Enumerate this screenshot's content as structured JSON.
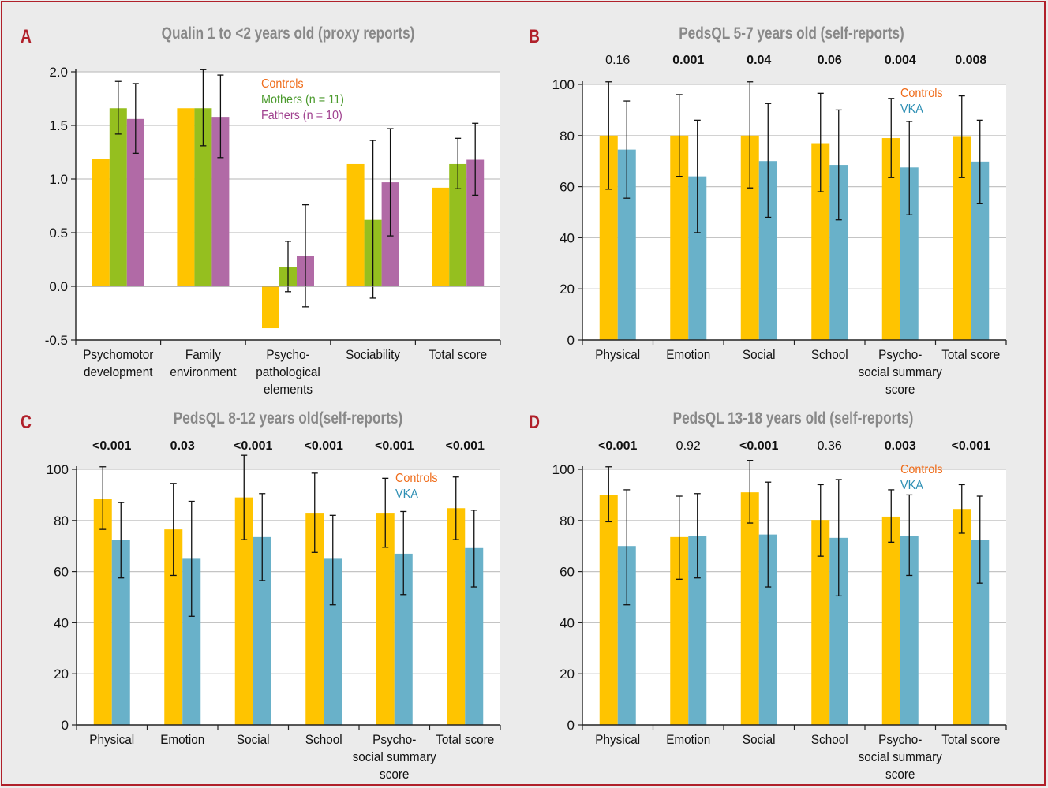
{
  "colors": {
    "controls": "#ffc400",
    "mothers": "#95bf1f",
    "fathers": "#b16aa6",
    "vka": "#69b1c9",
    "panel_letter": "#b0202a",
    "title": "#888888",
    "legend_controls": "#ef6c1a",
    "legend_mothers": "#4b9a2d",
    "legend_fathers": "#a0418f",
    "legend_vka": "#2e8fb4"
  },
  "chart_data": [
    {
      "panel": "A",
      "type": "bar",
      "title": "Qualin 1 to <2 years old (proxy reports)",
      "categories": [
        [
          "Psychomotor",
          "development"
        ],
        [
          "Family",
          "environment"
        ],
        [
          "Psycho-",
          "pathological",
          "elements"
        ],
        [
          "Sociability"
        ],
        [
          "Total score"
        ]
      ],
      "ylim": [
        -0.5,
        2.0
      ],
      "yticks": [
        -0.5,
        0.0,
        0.5,
        1.0,
        1.5,
        2.0
      ],
      "ytick_labels": [
        "-0.5",
        "0.0",
        "0.5",
        "1.0",
        "1.5",
        "2.0"
      ],
      "series": [
        {
          "name": "Controls",
          "color": "controls",
          "values": [
            1.19,
            1.66,
            -0.39,
            1.14,
            0.92
          ],
          "err_low": [
            null,
            null,
            null,
            null,
            null
          ],
          "err_high": [
            null,
            null,
            null,
            null,
            null
          ]
        },
        {
          "name": "Mothers (n = 11)",
          "color": "mothers",
          "values": [
            1.66,
            1.66,
            0.18,
            0.62,
            1.14
          ],
          "err_low": [
            1.42,
            1.31,
            -0.05,
            -0.11,
            0.91
          ],
          "err_high": [
            1.91,
            2.02,
            0.42,
            1.36,
            1.38
          ]
        },
        {
          "name": "Fathers (n = 10)",
          "color": "fathers",
          "values": [
            1.56,
            1.58,
            0.28,
            0.97,
            1.18
          ],
          "err_low": [
            1.24,
            1.2,
            -0.19,
            0.47,
            0.85
          ],
          "err_high": [
            1.89,
            1.97,
            0.76,
            1.47,
            1.52
          ]
        }
      ],
      "legend": [
        {
          "label": "Controls",
          "color": "legend_controls"
        },
        {
          "label": "Mothers (n = 11)",
          "color": "legend_mothers"
        },
        {
          "label": "Fathers (n = 10)",
          "color": "legend_fathers"
        }
      ],
      "legend_position": "top-center",
      "pvalues": [],
      "grid": true
    },
    {
      "panel": "B",
      "type": "bar",
      "title": "PedsQL 5-7 years old (self-reports)",
      "categories": [
        [
          "Physical"
        ],
        [
          "Emotion"
        ],
        [
          "Social"
        ],
        [
          "School"
        ],
        [
          "Psycho-",
          "social summary",
          "score"
        ],
        [
          "Total score"
        ]
      ],
      "ylim": [
        0,
        100
      ],
      "yticks": [
        0,
        20,
        40,
        60,
        80,
        100
      ],
      "ytick_labels": [
        "0",
        "20",
        "40",
        "60",
        "80",
        "100"
      ],
      "series": [
        {
          "name": "Controls",
          "color": "controls",
          "values": [
            80,
            80,
            80,
            77,
            79,
            79.5
          ],
          "err_low": [
            59,
            64,
            59.5,
            58,
            63.5,
            63.5
          ],
          "err_high": [
            101,
            96,
            101,
            96.5,
            94.5,
            95.5
          ]
        },
        {
          "name": "VKA",
          "color": "vka",
          "values": [
            74.5,
            64,
            70,
            68.5,
            67.5,
            69.8
          ],
          "err_low": [
            55.5,
            42,
            48,
            47,
            49,
            53.5
          ],
          "err_high": [
            93.5,
            86,
            92.5,
            90,
            85.5,
            86
          ]
        }
      ],
      "legend": [
        {
          "label": "Controls",
          "color": "legend_controls"
        },
        {
          "label": "VKA",
          "color": "legend_vka"
        }
      ],
      "legend_position": "top-right",
      "pvalues": [
        {
          "text": "0.16",
          "bold": false
        },
        {
          "text": "0.001",
          "bold": true
        },
        {
          "text": "0.04",
          "bold": true
        },
        {
          "text": "0.06",
          "bold": true
        },
        {
          "text": "0.004",
          "bold": true
        },
        {
          "text": "0.008",
          "bold": true
        }
      ],
      "grid": true
    },
    {
      "panel": "C",
      "type": "bar",
      "title": "PedsQL 8-12 years old(self-reports)",
      "categories": [
        [
          "Physical"
        ],
        [
          "Emotion"
        ],
        [
          "Social"
        ],
        [
          "School"
        ],
        [
          "Psycho-",
          "social summary",
          "score"
        ],
        [
          "Total score"
        ]
      ],
      "ylim": [
        0,
        100
      ],
      "yticks": [
        0,
        20,
        40,
        60,
        80,
        100
      ],
      "ytick_labels": [
        "0",
        "20",
        "40",
        "60",
        "80",
        "100"
      ],
      "series": [
        {
          "name": "Controls",
          "color": "controls",
          "values": [
            88.5,
            76.5,
            89,
            83,
            83,
            84.8
          ],
          "err_low": [
            76.5,
            58.5,
            72.5,
            67.5,
            69.5,
            72.5
          ],
          "err_high": [
            101,
            94.5,
            105.5,
            98.5,
            96.5,
            97
          ]
        },
        {
          "name": "VKA",
          "color": "vka",
          "values": [
            72.5,
            65,
            73.5,
            65,
            67,
            69.2
          ],
          "err_low": [
            57.5,
            42.5,
            56.5,
            47,
            51,
            54
          ],
          "err_high": [
            87,
            87.5,
            90.5,
            82,
            83.5,
            84
          ]
        }
      ],
      "legend": [
        {
          "label": "Controls",
          "color": "legend_controls"
        },
        {
          "label": "VKA",
          "color": "legend_vka"
        }
      ],
      "legend_position": "top-right",
      "pvalues": [
        {
          "text": "<0.001",
          "bold": true
        },
        {
          "text": "0.03",
          "bold": true
        },
        {
          "text": "<0.001",
          "bold": true
        },
        {
          "text": "<0.001",
          "bold": true
        },
        {
          "text": "<0.001",
          "bold": true
        },
        {
          "text": "<0.001",
          "bold": true
        }
      ],
      "grid": true
    },
    {
      "panel": "D",
      "type": "bar",
      "title": "PedsQL 13-18 years old (self-reports)",
      "categories": [
        [
          "Physical"
        ],
        [
          "Emotion"
        ],
        [
          "Social"
        ],
        [
          "School"
        ],
        [
          "Psycho-",
          "social summary",
          "score"
        ],
        [
          "Total score"
        ]
      ],
      "ylim": [
        0,
        100
      ],
      "yticks": [
        0,
        20,
        40,
        60,
        80,
        100
      ],
      "ytick_labels": [
        "0",
        "20",
        "40",
        "60",
        "80",
        "100"
      ],
      "series": [
        {
          "name": "Controls",
          "color": "controls",
          "values": [
            90,
            73.5,
            91,
            80.2,
            81.5,
            84.5
          ],
          "err_low": [
            79.5,
            57,
            79,
            66,
            71.5,
            75
          ],
          "err_high": [
            101,
            89.5,
            103.5,
            94,
            92,
            94
          ]
        },
        {
          "name": "VKA",
          "color": "vka",
          "values": [
            70,
            74,
            74.5,
            73.2,
            74,
            72.5
          ],
          "err_low": [
            47,
            57.5,
            54,
            50.5,
            58.5,
            55.5
          ],
          "err_high": [
            92,
            90.5,
            95,
            96,
            90,
            89.5
          ]
        }
      ],
      "legend": [
        {
          "label": "Controls",
          "color": "legend_controls"
        },
        {
          "label": "VKA",
          "color": "legend_vka"
        }
      ],
      "legend_position": "top-right",
      "pvalues": [
        {
          "text": "<0.001",
          "bold": true
        },
        {
          "text": "0.92",
          "bold": false
        },
        {
          "text": "<0.001",
          "bold": true
        },
        {
          "text": "0.36",
          "bold": false
        },
        {
          "text": "0.003",
          "bold": true
        },
        {
          "text": "<0.001",
          "bold": true
        }
      ],
      "grid": true
    }
  ]
}
